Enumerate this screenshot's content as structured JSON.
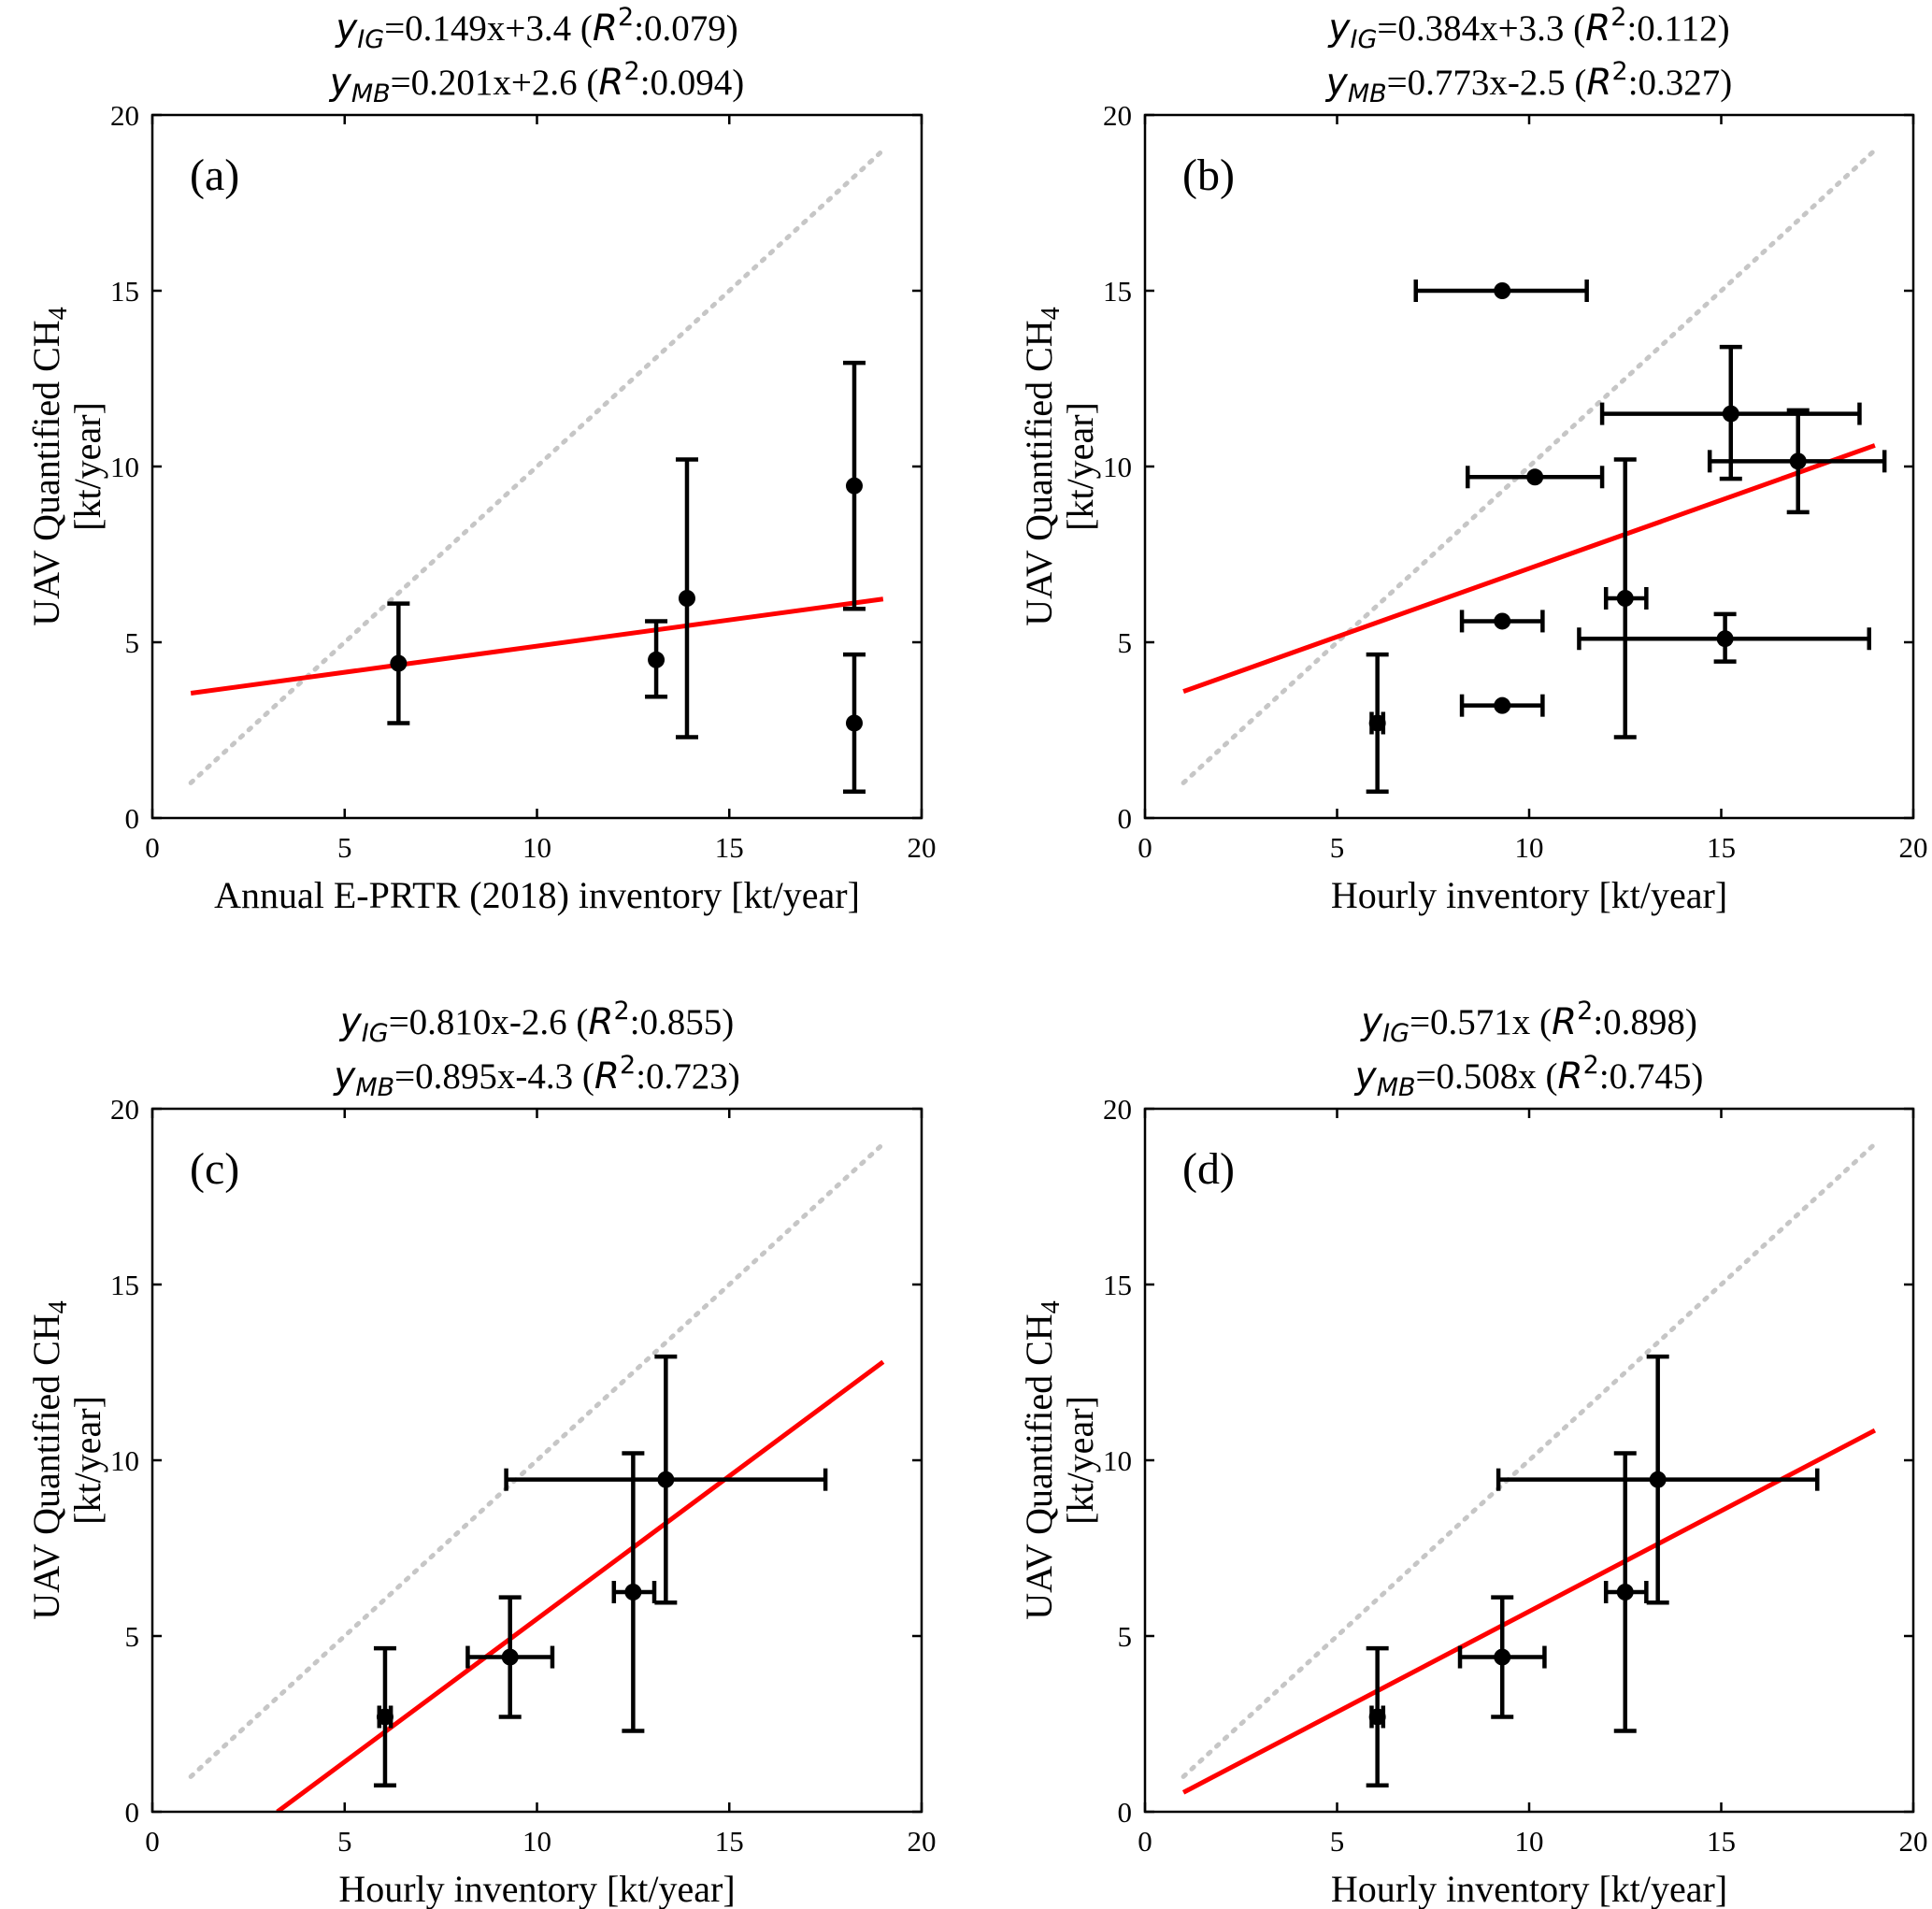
{
  "figure": {
    "ylabel_line1": "UAV Quantified CH",
    "ylabel_sub": "4",
    "ylabel_line2": "[kt/year]"
  },
  "chart_data": [
    {
      "type": "scatter",
      "panel": "(a)",
      "title_lines": [
        {
          "var": "y",
          "sub": "IG",
          "eq": "=0.149x+3.4 (",
          "r": "R",
          "sup": "2",
          "rest": ":0.079)"
        },
        {
          "var": "y",
          "sub": "MB",
          "eq": "=0.201x+2.6 (",
          "r": "R",
          "sup": "2",
          "rest": ":0.094)"
        }
      ],
      "xlabel": "Annual E-PRTR (2018) inventory [kt/year]",
      "ylabel": "UAV Quantified CH4 [kt/year]",
      "xlim": [
        0,
        20
      ],
      "ylim": [
        0,
        20
      ],
      "xticks": [
        0,
        5,
        10,
        15,
        20
      ],
      "yticks": [
        0,
        5,
        10,
        15,
        20
      ],
      "identity_line": {
        "x": [
          1,
          19
        ],
        "y": [
          1,
          19
        ]
      },
      "fit_line": {
        "x": [
          1,
          19
        ],
        "y": [
          3.55,
          6.23
        ]
      },
      "points": [
        {
          "x": 6.4,
          "y": 4.4,
          "ylo": 2.7,
          "yhi": 6.1
        },
        {
          "x": 13.1,
          "y": 4.5,
          "ylo": 3.45,
          "yhi": 5.6
        },
        {
          "x": 13.9,
          "y": 6.25,
          "ylo": 2.3,
          "yhi": 10.2
        },
        {
          "x": 18.25,
          "y": 9.45,
          "ylo": 5.95,
          "yhi": 12.95
        },
        {
          "x": 18.25,
          "y": 2.7,
          "ylo": 0.75,
          "yhi": 4.65
        }
      ]
    },
    {
      "type": "scatter",
      "panel": "(b)",
      "title_lines": [
        {
          "var": "y",
          "sub": "IG",
          "eq": "=0.384x+3.3 (",
          "r": "R",
          "sup": "2",
          "rest": ":0.112)"
        },
        {
          "var": "y",
          "sub": "MB",
          "eq": "=0.773x-2.5 (",
          "r": "R",
          "sup": "2",
          "rest": ":0.327)"
        }
      ],
      "xlabel": "Hourly inventory [kt/year]",
      "ylabel": "UAV Quantified CH4 [kt/year]",
      "xlim": [
        0,
        20
      ],
      "ylim": [
        0,
        20
      ],
      "xticks": [
        0,
        5,
        10,
        15,
        20
      ],
      "yticks": [
        0,
        5,
        10,
        15,
        20
      ],
      "identity_line": {
        "x": [
          1,
          19
        ],
        "y": [
          1,
          19
        ]
      },
      "fit_line": {
        "x": [
          1,
          19
        ],
        "y": [
          3.6,
          10.6
        ]
      },
      "points": [
        {
          "x": 9.3,
          "y": 15.0,
          "xlo": 7.05,
          "xhi": 11.5
        },
        {
          "x": 15.25,
          "y": 11.5,
          "ylo": 9.65,
          "yhi": 13.4,
          "xlo": 11.9,
          "xhi": 18.6
        },
        {
          "x": 17.0,
          "y": 10.15,
          "ylo": 8.7,
          "yhi": 11.6,
          "xlo": 14.7,
          "xhi": 19.25
        },
        {
          "x": 10.15,
          "y": 9.7,
          "xlo": 8.4,
          "xhi": 11.9
        },
        {
          "x": 12.5,
          "y": 6.25,
          "ylo": 2.3,
          "yhi": 10.2,
          "xlo": 12.0,
          "xhi": 13.05
        },
        {
          "x": 9.3,
          "y": 5.6,
          "xlo": 8.25,
          "xhi": 10.35
        },
        {
          "x": 15.1,
          "y": 5.1,
          "ylo": 4.45,
          "yhi": 5.8,
          "xlo": 11.3,
          "xhi": 18.85
        },
        {
          "x": 9.3,
          "y": 3.2,
          "xlo": 8.25,
          "xhi": 10.35
        },
        {
          "x": 6.05,
          "y": 2.7,
          "ylo": 0.75,
          "yhi": 4.65,
          "xlo": 5.9,
          "xhi": 6.2
        }
      ]
    },
    {
      "type": "scatter",
      "panel": "(c)",
      "title_lines": [
        {
          "var": "y",
          "sub": "IG",
          "eq": "=0.810x-2.6 (",
          "r": "R",
          "sup": "2",
          "rest": ":0.855)"
        },
        {
          "var": "y",
          "sub": "MB",
          "eq": "=0.895x-4.3 (",
          "r": "R",
          "sup": "2",
          "rest": ":0.723)"
        }
      ],
      "xlabel": "Hourly inventory [kt/year]",
      "ylabel": "UAV Quantified CH4 [kt/year]",
      "xlim": [
        0,
        20
      ],
      "ylim": [
        0,
        20
      ],
      "xticks": [
        0,
        5,
        10,
        15,
        20
      ],
      "yticks": [
        0,
        5,
        10,
        15,
        20
      ],
      "identity_line": {
        "x": [
          1,
          19
        ],
        "y": [
          1,
          19
        ]
      },
      "fit_line": {
        "x": [
          3.25,
          19
        ],
        "y": [
          0,
          12.8
        ]
      },
      "points": [
        {
          "x": 6.05,
          "y": 2.7,
          "ylo": 0.75,
          "yhi": 4.65,
          "xlo": 5.9,
          "xhi": 6.2
        },
        {
          "x": 9.3,
          "y": 4.4,
          "ylo": 2.7,
          "yhi": 6.1,
          "xlo": 8.2,
          "xhi": 10.4
        },
        {
          "x": 12.5,
          "y": 6.25,
          "ylo": 2.3,
          "yhi": 10.2,
          "xlo": 12.0,
          "xhi": 13.05
        },
        {
          "x": 13.35,
          "y": 9.45,
          "ylo": 5.95,
          "yhi": 12.95,
          "xlo": 9.2,
          "xhi": 17.5
        }
      ]
    },
    {
      "type": "scatter",
      "panel": "(d)",
      "title_lines": [
        {
          "var": "y",
          "sub": "IG",
          "eq": "=0.571x (",
          "r": "R",
          "sup": "2",
          "rest": ":0.898)"
        },
        {
          "var": "y",
          "sub": "MB",
          "eq": "=0.508x (",
          "r": "R",
          "sup": "2",
          "rest": ":0.745)"
        }
      ],
      "xlabel": "Hourly inventory [kt/year]",
      "ylabel": "UAV Quantified CH4 [kt/year]",
      "xlim": [
        0,
        20
      ],
      "ylim": [
        0,
        20
      ],
      "xticks": [
        0,
        5,
        10,
        15,
        20
      ],
      "yticks": [
        0,
        5,
        10,
        15,
        20
      ],
      "identity_line": {
        "x": [
          1,
          19
        ],
        "y": [
          1,
          19
        ]
      },
      "fit_line": {
        "x": [
          1,
          19
        ],
        "y": [
          0.55,
          10.85
        ]
      },
      "points": [
        {
          "x": 6.05,
          "y": 2.7,
          "ylo": 0.75,
          "yhi": 4.65,
          "xlo": 5.9,
          "xhi": 6.2
        },
        {
          "x": 9.3,
          "y": 4.4,
          "ylo": 2.7,
          "yhi": 6.1,
          "xlo": 8.2,
          "xhi": 10.4
        },
        {
          "x": 12.5,
          "y": 6.25,
          "ylo": 2.3,
          "yhi": 10.2,
          "xlo": 12.0,
          "xhi": 13.05
        },
        {
          "x": 13.35,
          "y": 9.45,
          "ylo": 5.95,
          "yhi": 12.95,
          "xlo": 9.2,
          "xhi": 17.5
        }
      ]
    }
  ]
}
